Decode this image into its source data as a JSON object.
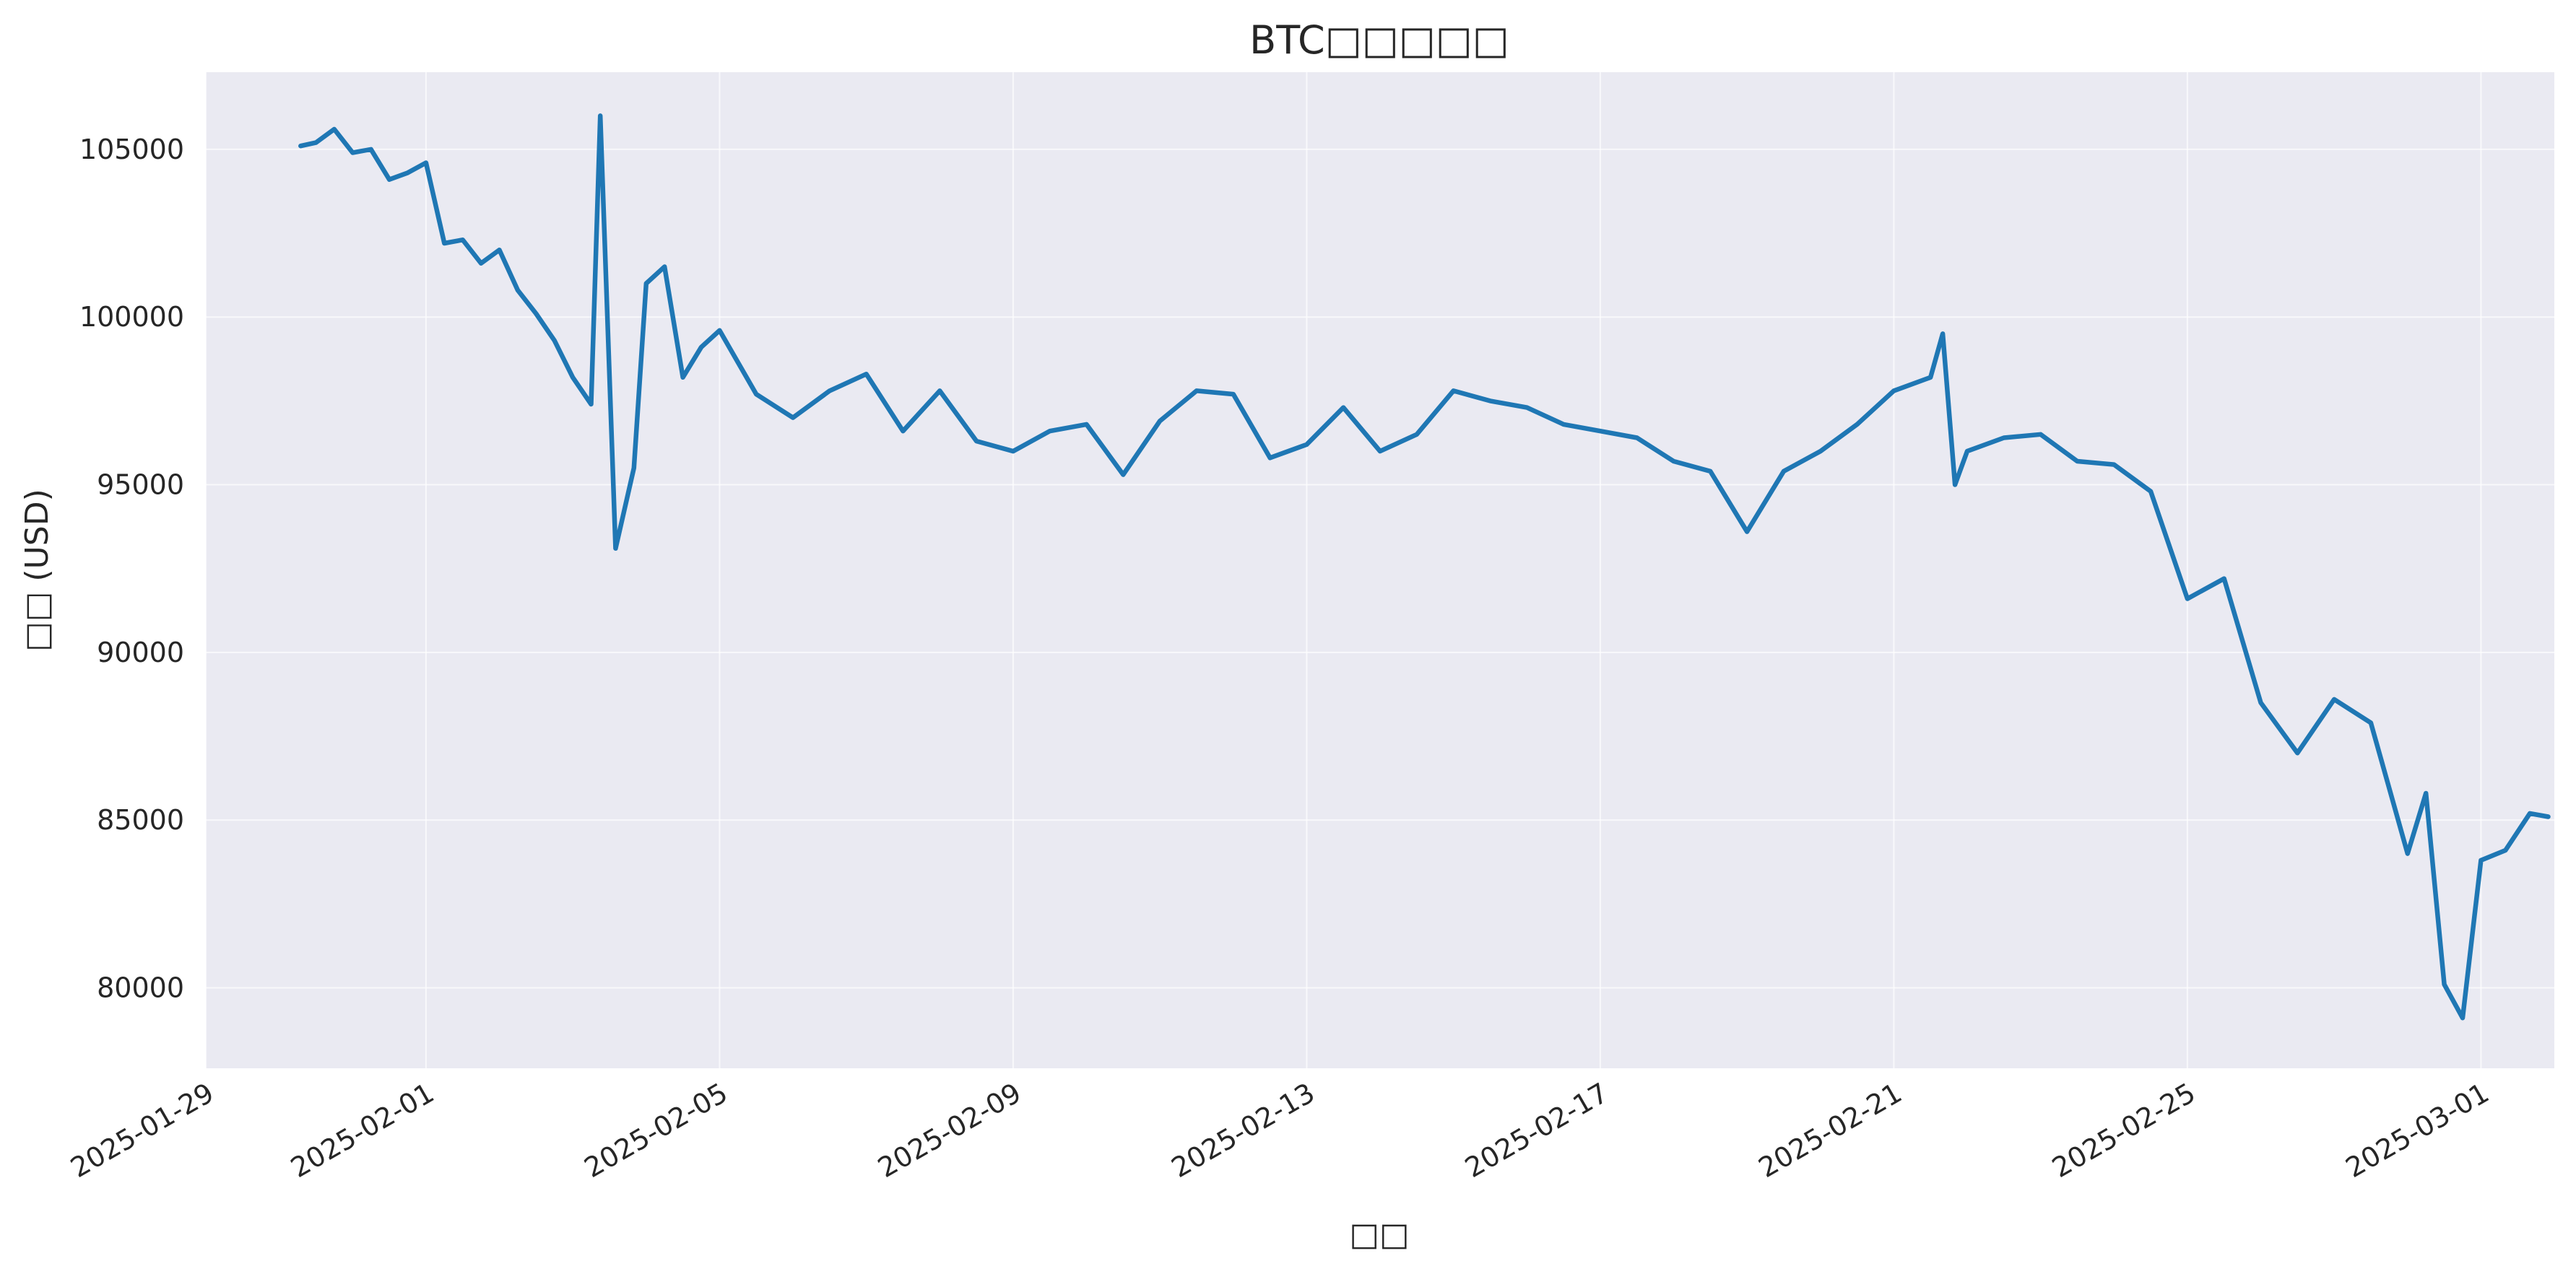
{
  "chart_data": {
    "type": "line",
    "title": "BTC□□□□□",
    "xlabel": "□□",
    "ylabel": "□□ (USD)",
    "x_ticks": [
      "2025-01-29",
      "2025-02-01",
      "2025-02-05",
      "2025-02-09",
      "2025-02-13",
      "2025-02-17",
      "2025-02-21",
      "2025-02-25",
      "2025-03-01"
    ],
    "y_ticks": [
      "80000",
      "85000",
      "90000",
      "95000",
      "100000",
      "105000"
    ],
    "xlim": [
      "2025-01-29",
      "2025-03-02"
    ],
    "ylim": [
      77600,
      107300
    ],
    "grid": true,
    "legend": "none",
    "colors": {
      "line": "#1f77b4",
      "plot_bg": "#eaeaf2",
      "grid": "#ffffff"
    },
    "series": [
      {
        "x": [
          "2025-01-30 07:00",
          "2025-01-30 12:00",
          "2025-01-30 18:00",
          "2025-01-31 00:00",
          "2025-01-31 06:00",
          "2025-01-31 12:00",
          "2025-01-31 18:00",
          "2025-02-01 00:00",
          "2025-02-01 06:00",
          "2025-02-01 12:00",
          "2025-02-01 18:00",
          "2025-02-02 00:00",
          "2025-02-02 06:00",
          "2025-02-02 12:00",
          "2025-02-02 18:00",
          "2025-02-03 00:00",
          "2025-02-03 06:00",
          "2025-02-03 09:00",
          "2025-02-03 14:00",
          "2025-02-03 20:00",
          "2025-02-04 00:00",
          "2025-02-04 06:00",
          "2025-02-04 12:00",
          "2025-02-04 18:00",
          "2025-02-05 00:00",
          "2025-02-05 12:00",
          "2025-02-06 00:00",
          "2025-02-06 12:00",
          "2025-02-07 00:00",
          "2025-02-07 12:00",
          "2025-02-08 00:00",
          "2025-02-08 12:00",
          "2025-02-09 00:00",
          "2025-02-09 12:00",
          "2025-02-10 00:00",
          "2025-02-10 12:00",
          "2025-02-11 00:00",
          "2025-02-11 12:00",
          "2025-02-12 00:00",
          "2025-02-12 12:00",
          "2025-02-13 00:00",
          "2025-02-13 12:00",
          "2025-02-14 00:00",
          "2025-02-14 12:00",
          "2025-02-15 00:00",
          "2025-02-15 12:00",
          "2025-02-16 00:00",
          "2025-02-16 12:00",
          "2025-02-17 00:00",
          "2025-02-17 12:00",
          "2025-02-18 00:00",
          "2025-02-18 12:00",
          "2025-02-19 00:00",
          "2025-02-19 12:00",
          "2025-02-20 00:00",
          "2025-02-20 12:00",
          "2025-02-21 00:00",
          "2025-02-21 12:00",
          "2025-02-21 16:00",
          "2025-02-21 20:00",
          "2025-02-22 00:00",
          "2025-02-22 12:00",
          "2025-02-23 00:00",
          "2025-02-23 12:00",
          "2025-02-24 00:00",
          "2025-02-24 12:00",
          "2025-02-25 00:00",
          "2025-02-25 12:00",
          "2025-02-26 00:00",
          "2025-02-26 12:00",
          "2025-02-27 00:00",
          "2025-02-27 12:00",
          "2025-02-28 00:00",
          "2025-02-28 06:00",
          "2025-02-28 12:00",
          "2025-02-28 18:00",
          "2025-03-01 00:00",
          "2025-03-01 08:00",
          "2025-03-01 16:00",
          "2025-03-01 22:00"
        ],
        "values": [
          105100,
          105200,
          105600,
          104900,
          105000,
          104100,
          104300,
          104600,
          102200,
          102300,
          101600,
          102000,
          100800,
          100100,
          99300,
          98200,
          97400,
          106000,
          93100,
          95500,
          101000,
          101500,
          98200,
          99100,
          99600,
          97700,
          97000,
          97800,
          98300,
          96600,
          97800,
          96300,
          96000,
          96600,
          96800,
          95300,
          96900,
          97800,
          97700,
          95800,
          96200,
          97300,
          96000,
          96500,
          97800,
          97500,
          97300,
          96800,
          96600,
          96400,
          95700,
          95400,
          93600,
          95400,
          96000,
          96800,
          97800,
          98200,
          99500,
          95000,
          96000,
          96400,
          96500,
          95700,
          95600,
          94800,
          91600,
          92200,
          88500,
          87000,
          88600,
          87900,
          84000,
          85800,
          80100,
          79100,
          83800,
          84100,
          85200,
          85100
        ]
      }
    ]
  }
}
